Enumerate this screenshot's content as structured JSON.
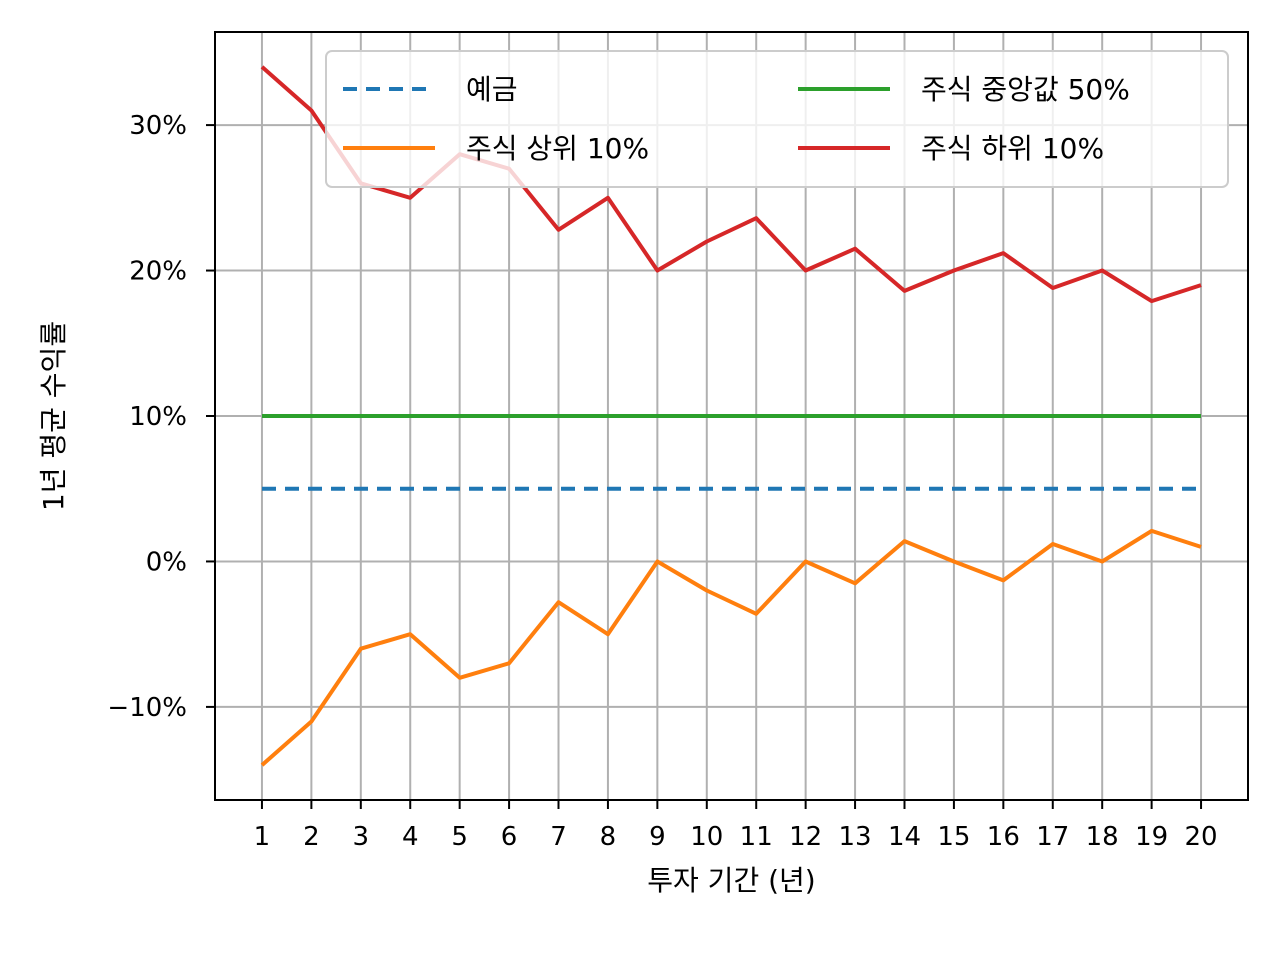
{
  "chart_data": {
    "type": "line",
    "title": "",
    "xlabel": "투자 기간 (년)",
    "ylabel": "1년 평균 수익률",
    "x": [
      1,
      2,
      3,
      4,
      5,
      6,
      7,
      8,
      9,
      10,
      11,
      12,
      13,
      14,
      15,
      16,
      17,
      18,
      19,
      20
    ],
    "x_tick_labels": [
      "1",
      "2",
      "3",
      "4",
      "5",
      "6",
      "7",
      "8",
      "9",
      "10",
      "11",
      "12",
      "13",
      "14",
      "15",
      "16",
      "17",
      "18",
      "19",
      "20"
    ],
    "ylim": [
      -16.4,
      36.4
    ],
    "xlim": [
      0.05,
      20.95
    ],
    "y_ticks": [
      -10,
      0,
      10,
      20,
      30
    ],
    "y_tick_labels": [
      "−10%",
      "0%",
      "10%",
      "20%",
      "30%"
    ],
    "grid": true,
    "legend": {
      "placement": "top-right",
      "columns": 2
    },
    "series": [
      {
        "name": "예금",
        "color": "#1f77b4",
        "style": "dashed",
        "values": [
          5,
          5,
          5,
          5,
          5,
          5,
          5,
          5,
          5,
          5,
          5,
          5,
          5,
          5,
          5,
          5,
          5,
          5,
          5,
          5
        ]
      },
      {
        "name": "주식 상위 10%",
        "color": "#ff7f0e",
        "style": "solid",
        "values": [
          -14,
          -11,
          -6,
          -5,
          -8,
          -7,
          -2.8,
          -5,
          0,
          -2,
          -3.6,
          0,
          -1.5,
          1.4,
          0,
          -1.3,
          1.2,
          0,
          2.1,
          1
        ]
      },
      {
        "name": "주식 중앙값 50%",
        "color": "#2ca02c",
        "style": "solid",
        "values": [
          10,
          10,
          10,
          10,
          10,
          10,
          10,
          10,
          10,
          10,
          10,
          10,
          10,
          10,
          10,
          10,
          10,
          10,
          10,
          10
        ]
      },
      {
        "name": "주식 하위 10%",
        "color": "#d62728",
        "style": "solid",
        "values": [
          34,
          31,
          26,
          25,
          28,
          27,
          22.8,
          25,
          20,
          22,
          23.6,
          20,
          21.5,
          18.6,
          20,
          21.2,
          18.8,
          20,
          17.9,
          19
        ]
      }
    ]
  }
}
